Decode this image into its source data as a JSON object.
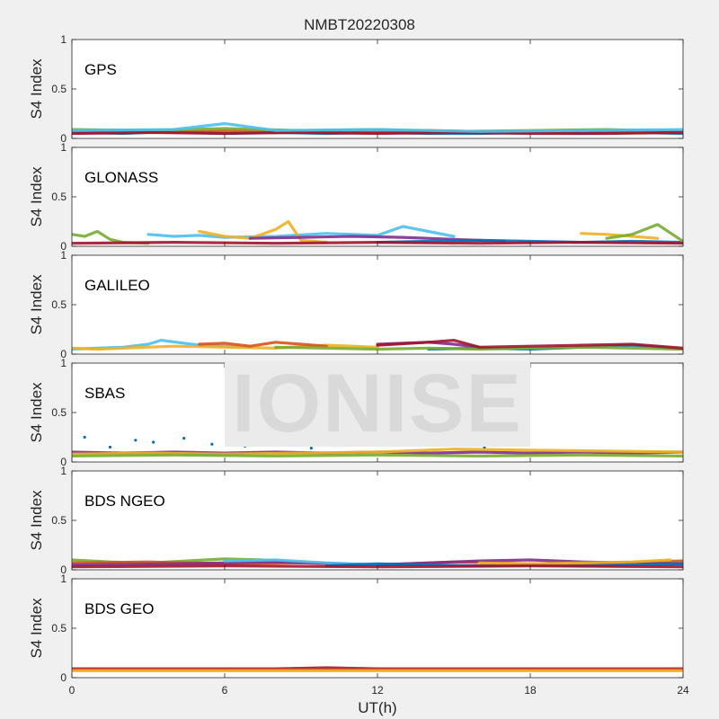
{
  "figure": {
    "title": "NMBT20220308",
    "xlabel": "UT(h)",
    "watermark": "IONISE"
  },
  "chart_data": {
    "type": "scatter",
    "x_unit": "hours UT",
    "xlim": [
      0,
      24
    ],
    "xticks": [
      0,
      6,
      12,
      18,
      24
    ],
    "ylim": [
      0,
      1
    ],
    "yticks": [
      0,
      0.5,
      1
    ],
    "ytick_labels": [
      "0",
      "0.5",
      "1"
    ],
    "grid": false,
    "series_colors": [
      "#0072BD",
      "#D95319",
      "#EDB120",
      "#7E2F8E",
      "#77AC30",
      "#4DBEEE",
      "#A2142F"
    ],
    "panels": [
      {
        "label": "GPS",
        "ylabel": "S4 Index",
        "tracks": [
          {
            "color": "#0072BD",
            "x": [
              0,
              2,
              4,
              6,
              8,
              10,
              12,
              14,
              16,
              18,
              20,
              22,
              24
            ],
            "y": [
              0.06,
              0.05,
              0.07,
              0.05,
              0.06,
              0.05,
              0.06,
              0.05,
              0.05,
              0.06,
              0.05,
              0.06,
              0.05
            ]
          },
          {
            "color": "#D95319",
            "x": [
              0,
              2,
              4,
              6,
              8,
              10,
              12,
              14,
              16,
              18,
              20,
              22,
              24
            ],
            "y": [
              0.07,
              0.08,
              0.06,
              0.08,
              0.07,
              0.06,
              0.07,
              0.08,
              0.07,
              0.06,
              0.08,
              0.07,
              0.06
            ]
          },
          {
            "color": "#77AC30",
            "x": [
              0,
              3,
              6,
              9,
              12,
              15,
              18,
              21,
              24
            ],
            "y": [
              0.09,
              0.08,
              0.1,
              0.08,
              0.09,
              0.07,
              0.08,
              0.09,
              0.07
            ]
          },
          {
            "color": "#A2142F",
            "x": [
              0,
              3,
              6,
              9,
              12,
              15,
              18,
              21,
              24
            ],
            "y": [
              0.05,
              0.06,
              0.05,
              0.06,
              0.05,
              0.06,
              0.05,
              0.05,
              0.06
            ]
          },
          {
            "color": "#4DBEEE",
            "x": [
              0,
              4,
              6,
              8,
              12,
              16,
              20,
              24
            ],
            "y": [
              0.08,
              0.09,
              0.15,
              0.08,
              0.09,
              0.07,
              0.08,
              0.09
            ]
          }
        ]
      },
      {
        "label": "GLONASS",
        "ylabel": "S4 Index",
        "tracks": [
          {
            "color": "#77AC30",
            "x": [
              0,
              0.5,
              1,
              1.5,
              2,
              3
            ],
            "y": [
              0.12,
              0.1,
              0.15,
              0.07,
              0.04,
              0.03
            ]
          },
          {
            "color": "#4DBEEE",
            "x": [
              3,
              4,
              5,
              6,
              8,
              10,
              12,
              13,
              15
            ],
            "y": [
              0.12,
              0.1,
              0.11,
              0.09,
              0.1,
              0.13,
              0.11,
              0.2,
              0.1
            ]
          },
          {
            "color": "#EDB120",
            "x": [
              5,
              6,
              7,
              8,
              8.5,
              9,
              10
            ],
            "y": [
              0.15,
              0.1,
              0.08,
              0.17,
              0.25,
              0.06,
              0.04
            ]
          },
          {
            "color": "#7E2F8E",
            "x": [
              7,
              9,
              11,
              13,
              15,
              17
            ],
            "y": [
              0.08,
              0.09,
              0.1,
              0.09,
              0.07,
              0.05
            ]
          },
          {
            "color": "#0072BD",
            "x": [
              12,
              14,
              16,
              18,
              20,
              22,
              24
            ],
            "y": [
              0.04,
              0.05,
              0.06,
              0.05,
              0.04,
              0.05,
              0.04
            ]
          },
          {
            "color": "#EDB120",
            "x": [
              20,
              21,
              22,
              23
            ],
            "y": [
              0.13,
              0.12,
              0.1,
              0.08
            ]
          },
          {
            "color": "#77AC30",
            "x": [
              21,
              22,
              23,
              24
            ],
            "y": [
              0.08,
              0.12,
              0.22,
              0.05
            ]
          },
          {
            "color": "#A2142F",
            "x": [
              0,
              4,
              8,
              12,
              16,
              20,
              24
            ],
            "y": [
              0.03,
              0.04,
              0.03,
              0.04,
              0.03,
              0.04,
              0.03
            ]
          }
        ]
      },
      {
        "label": "GALILEO",
        "ylabel": "S4 Index",
        "tracks": [
          {
            "color": "#4DBEEE",
            "x": [
              0,
              1,
              2,
              3,
              3.5,
              5,
              7
            ],
            "y": [
              0.05,
              0.06,
              0.07,
              0.1,
              0.14,
              0.09,
              0.07
            ]
          },
          {
            "color": "#EDB120",
            "x": [
              0,
              1,
              2,
              4,
              6,
              8,
              10,
              12
            ],
            "y": [
              0.06,
              0.05,
              0.06,
              0.08,
              0.07,
              0.06,
              0.09,
              0.07
            ]
          },
          {
            "color": "#D95319",
            "x": [
              5,
              6,
              7,
              8,
              9,
              10
            ],
            "y": [
              0.1,
              0.11,
              0.08,
              0.12,
              0.1,
              0.08
            ]
          },
          {
            "color": "#7E2F8E",
            "x": [
              12,
              13,
              14,
              15,
              16
            ],
            "y": [
              0.1,
              0.11,
              0.12,
              0.1,
              0.07
            ]
          },
          {
            "color": "#0072BD",
            "x": [
              14,
              16,
              18,
              20,
              22,
              24
            ],
            "y": [
              0.05,
              0.06,
              0.05,
              0.07,
              0.09,
              0.05
            ]
          },
          {
            "color": "#77AC30",
            "x": [
              8,
              10,
              12,
              14,
              16,
              18,
              20,
              22,
              24
            ],
            "y": [
              0.07,
              0.06,
              0.05,
              0.06,
              0.05,
              0.06,
              0.07,
              0.06,
              0.05
            ]
          },
          {
            "color": "#A2142F",
            "x": [
              12,
              14,
              15,
              16,
              18,
              20,
              22,
              24
            ],
            "y": [
              0.09,
              0.12,
              0.14,
              0.07,
              0.08,
              0.09,
              0.1,
              0.06
            ]
          }
        ]
      },
      {
        "label": "SBAS",
        "ylabel": "S4 Index",
        "tracks": [
          {
            "color": "#7E2F8E",
            "x": [
              0,
              2,
              4,
              6,
              8,
              10,
              12,
              14,
              16,
              18,
              20,
              22,
              24
            ],
            "y": [
              0.1,
              0.09,
              0.1,
              0.09,
              0.1,
              0.09,
              0.1,
              0.09,
              0.1,
              0.09,
              0.1,
              0.09,
              0.1
            ]
          },
          {
            "color": "#EDB120",
            "x": [
              0,
              3,
              6,
              9,
              12,
              15,
              18,
              21,
              24
            ],
            "y": [
              0.08,
              0.09,
              0.08,
              0.09,
              0.1,
              0.13,
              0.12,
              0.11,
              0.1
            ]
          },
          {
            "color": "#77AC30",
            "x": [
              0,
              4,
              8,
              12,
              16,
              20,
              24
            ],
            "y": [
              0.06,
              0.07,
              0.06,
              0.07,
              0.06,
              0.07,
              0.06
            ]
          }
        ],
        "scatter_points": {
          "color": "#0072BD",
          "x": [
            0.5,
            1.5,
            2.5,
            3.2,
            4.4,
            5.5,
            6.8,
            8.2,
            9.4,
            10.6,
            11.8,
            13.1,
            14.6,
            16.2,
            17.4
          ],
          "y": [
            0.25,
            0.15,
            0.22,
            0.2,
            0.24,
            0.18,
            0.16,
            0.2,
            0.14,
            0.22,
            0.19,
            0.17,
            0.21,
            0.15,
            0.23
          ]
        }
      },
      {
        "label": "BDS NGEO",
        "ylabel": "S4 Index",
        "tracks": [
          {
            "color": "#77AC30",
            "x": [
              0,
              1.5,
              3,
              4.5,
              6,
              7.5,
              9
            ],
            "y": [
              0.1,
              0.08,
              0.07,
              0.09,
              0.11,
              0.1,
              0.07
            ]
          },
          {
            "color": "#D95319",
            "x": [
              0,
              3,
              6,
              9,
              12,
              15,
              18,
              21,
              24
            ],
            "y": [
              0.07,
              0.08,
              0.06,
              0.07,
              0.05,
              0.08,
              0.06,
              0.07,
              0.09
            ]
          },
          {
            "color": "#7E2F8E",
            "x": [
              0,
              4,
              8,
              12,
              16,
              18,
              20,
              24
            ],
            "y": [
              0.05,
              0.06,
              0.08,
              0.05,
              0.09,
              0.1,
              0.08,
              0.06
            ]
          },
          {
            "color": "#4DBEEE",
            "x": [
              6,
              8,
              10,
              12
            ],
            "y": [
              0.09,
              0.1,
              0.07,
              0.05
            ]
          },
          {
            "color": "#0072BD",
            "x": [
              10,
              12,
              14,
              16,
              18,
              20,
              22,
              24
            ],
            "y": [
              0.04,
              0.06,
              0.05,
              0.04,
              0.05,
              0.04,
              0.05,
              0.06
            ]
          },
          {
            "color": "#EDB120",
            "x": [
              16,
              18,
              20,
              22,
              23.5
            ],
            "y": [
              0.07,
              0.06,
              0.07,
              0.08,
              0.1
            ]
          },
          {
            "color": "#A2142F",
            "x": [
              0,
              6,
              12,
              18,
              24
            ],
            "y": [
              0.03,
              0.04,
              0.03,
              0.04,
              0.03
            ]
          }
        ]
      },
      {
        "label": "BDS GEO",
        "ylabel": "S4 Index",
        "tracks": [
          {
            "color": "#A2142F",
            "x": [
              0,
              4,
              8,
              10,
              12,
              16,
              20,
              24
            ],
            "y": [
              0.09,
              0.09,
              0.09,
              0.1,
              0.09,
              0.09,
              0.09,
              0.09
            ]
          },
          {
            "color": "#D95319",
            "x": [
              0,
              4,
              8,
              12,
              16,
              20,
              24
            ],
            "y": [
              0.08,
              0.08,
              0.08,
              0.08,
              0.08,
              0.08,
              0.08
            ]
          },
          {
            "color": "#EDB120",
            "x": [
              0,
              4,
              8,
              12,
              16,
              20,
              24
            ],
            "y": [
              0.07,
              0.07,
              0.07,
              0.07,
              0.07,
              0.07,
              0.07
            ]
          }
        ]
      }
    ]
  }
}
